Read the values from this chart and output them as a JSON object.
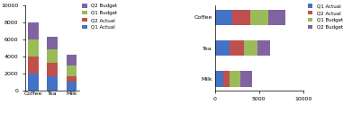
{
  "categories": [
    "Coffee",
    "Tea",
    "Milk"
  ],
  "q1_actual": [
    2000,
    1700,
    1000
  ],
  "q2_actual": [
    2000,
    1600,
    700
  ],
  "q1_budget": [
    2000,
    1500,
    1200
  ],
  "q2_budget": [
    2000,
    1500,
    1300
  ],
  "colors": {
    "Q1 Actual": "#4472c4",
    "Q2 Actual": "#c0504d",
    "Q1 Budget": "#9bbb59",
    "Q2 Budget": "#8064a2"
  },
  "legend_left_order": [
    "Q2 Budget",
    "Q1 Budget",
    "Q2 Actual",
    "Q1 Actual"
  ],
  "legend_right_order": [
    "Q1 Actual",
    "Q2 Actual",
    "Q1 Budget",
    "Q2 Budget"
  ],
  "ylim": [
    0,
    10000
  ],
  "xlim": [
    0,
    10000
  ],
  "yticks_left": [
    0,
    2000,
    4000,
    6000,
    8000,
    10000
  ],
  "xticks_right": [
    0,
    5000,
    10000
  ]
}
